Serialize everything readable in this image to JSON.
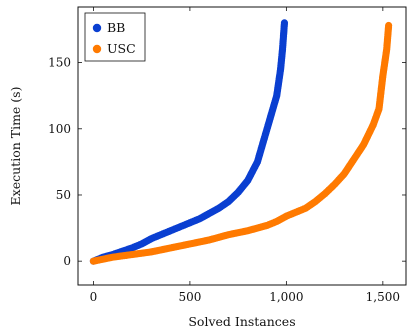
{
  "chart_data": {
    "type": "scatter",
    "title": "",
    "xlabel": "Solved Instances",
    "ylabel": "Execution Time (s)",
    "xlim": [
      -80,
      1620
    ],
    "ylim": [
      -18,
      192
    ],
    "xticks": [
      0,
      500,
      1000,
      1500
    ],
    "xtick_labels": [
      "0",
      "500",
      "1,000",
      "1,500"
    ],
    "yticks": [
      0,
      50,
      100,
      150
    ],
    "ytick_labels": [
      "0",
      "50",
      "100",
      "150"
    ],
    "grid": false,
    "legend_position": "top-left",
    "series": [
      {
        "name": "BB",
        "color": "#0a3fd1",
        "x": [
          0,
          50,
          100,
          150,
          200,
          250,
          300,
          350,
          400,
          450,
          500,
          550,
          600,
          650,
          700,
          750,
          800,
          850,
          870,
          900,
          930,
          950,
          970,
          980,
          990
        ],
        "y": [
          0,
          3,
          5,
          7.5,
          10,
          13,
          17,
          20,
          23,
          26,
          29,
          32,
          36,
          40,
          45,
          52,
          61,
          75,
          85,
          100,
          115,
          125,
          145,
          160,
          180
        ]
      },
      {
        "name": "USC",
        "color": "#ff7a00",
        "x": [
          0,
          100,
          200,
          300,
          400,
          500,
          600,
          700,
          800,
          900,
          950,
          1000,
          1050,
          1100,
          1150,
          1200,
          1250,
          1300,
          1350,
          1400,
          1450,
          1480,
          1500,
          1520,
          1530
        ],
        "y": [
          0,
          3,
          5,
          7,
          10,
          13,
          16,
          20,
          23,
          27,
          30,
          34,
          37,
          40,
          45,
          51,
          58,
          66,
          77,
          88,
          103,
          115,
          140,
          160,
          178
        ]
      }
    ]
  }
}
